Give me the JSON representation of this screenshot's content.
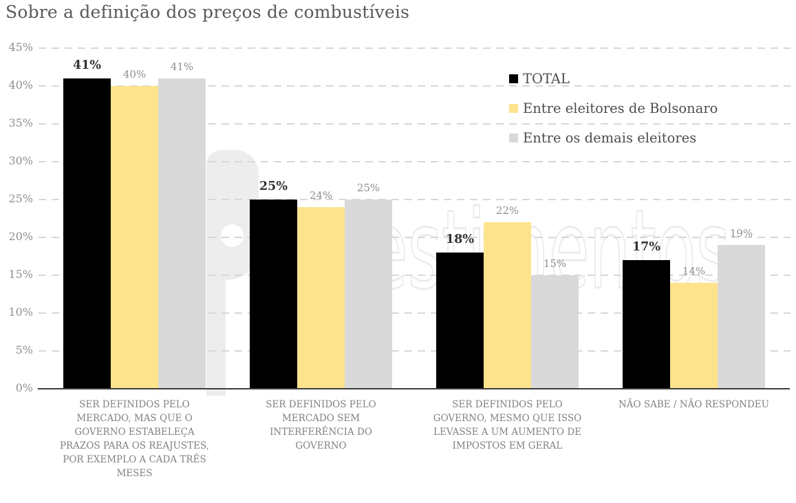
{
  "watermark": {
    "logo_letter": "p",
    "text": "investimentos"
  },
  "chart_data": {
    "type": "bar",
    "title": "Sobre a definição dos preços de combustíveis",
    "categories": [
      "SER DEFINIDOS PELO\nMERCADO, MAS QUE O\nGOVERNO ESTABELEÇA\nPRAZOS PARA OS REAJUSTES,\nPOR EXEMPLO A CADA TRÊS\nMESES",
      "SER DEFINIDOS PELO\nMERCADO SEM\nINTERFERÊNCIA DO\nGOVERNO",
      "SER DEFINIDOS PELO\nGOVERNO, MESMO QUE ISSO\nLEVASSE A UM AUMENTO DE\nIMPOSTOS EM GERAL",
      "NÃO SABE / NÃO RESPONDEU"
    ],
    "series": [
      {
        "name": "TOTAL",
        "color": "#000000",
        "values": [
          41,
          25,
          18,
          17
        ]
      },
      {
        "name": "Entre eleitores de Bolsonaro",
        "color": "#FDE38C",
        "values": [
          40,
          24,
          22,
          14
        ]
      },
      {
        "name": "Entre os demais eleitores",
        "color": "#D9D9D9",
        "values": [
          41,
          25,
          15,
          19
        ]
      }
    ],
    "value_suffix": "%",
    "yticks": [
      0,
      5,
      10,
      15,
      20,
      25,
      30,
      35,
      40,
      45
    ],
    "ylim": [
      0,
      45
    ],
    "grid": "dashed-horizontal",
    "legend_position": "top-right"
  }
}
